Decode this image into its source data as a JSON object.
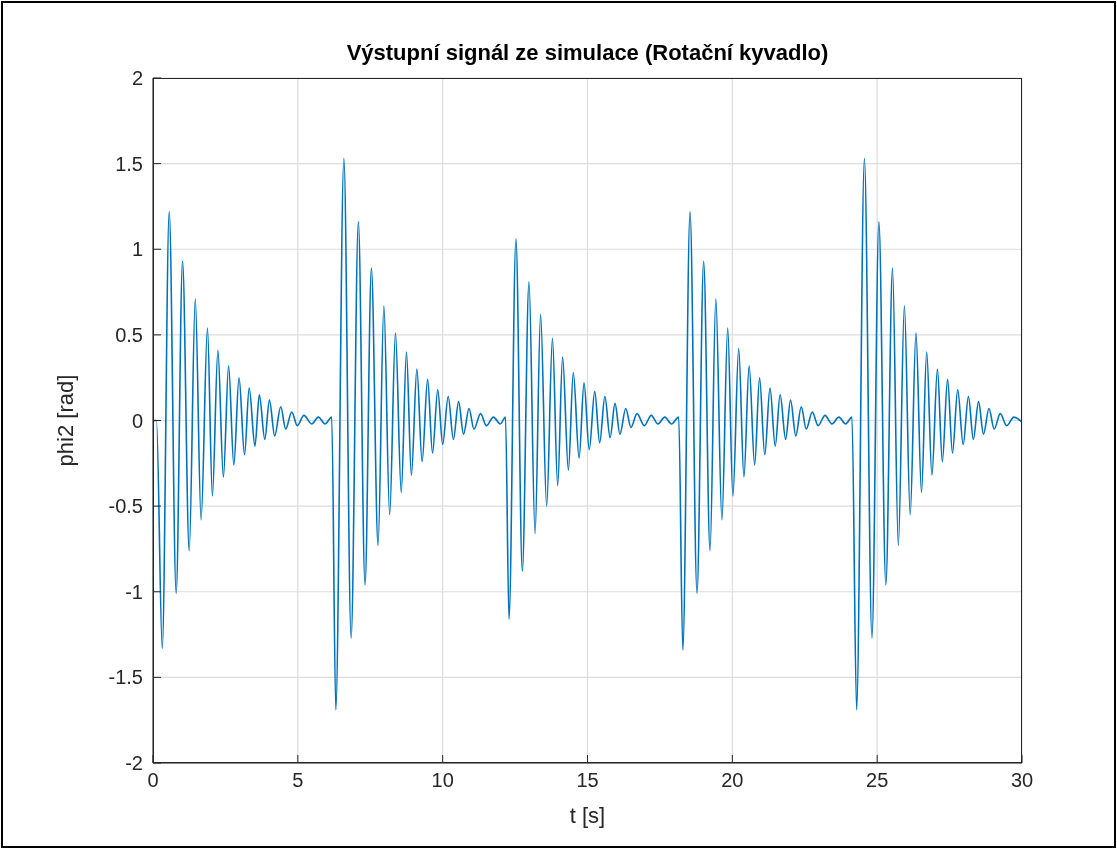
{
  "chart_data": {
    "type": "line",
    "title": "Výstupní signál ze simulace (Rotační kyvadlo)",
    "xlabel": "t [s]",
    "ylabel": "phi2 [rad]",
    "xlim": [
      0,
      30
    ],
    "xticks": [
      0,
      5,
      10,
      15,
      20,
      25,
      30
    ],
    "ylim": [
      -2,
      2
    ],
    "yticks": [
      -2,
      -1.5,
      -1,
      -0.5,
      0,
      0.5,
      1,
      1.5,
      2
    ],
    "grid": true,
    "line_style": "solid",
    "marker": "none",
    "series": [
      {
        "color": "#0072bd",
        "x": [
          0,
          0.12,
          0.32,
          0.56,
          0.8,
          1.02,
          1.25,
          1.46,
          1.66,
          1.88,
          2.05,
          2.24,
          2.43,
          2.61,
          2.79,
          2.97,
          3.16,
          3.32,
          3.52,
          3.67,
          3.86,
          4.02,
          4.2,
          4.41,
          4.58,
          4.79,
          4.98,
          5.21,
          5.48,
          5.71,
          5.94,
          6.17,
          6.31,
          6.59,
          6.84,
          7.09,
          7.32,
          7.54,
          7.77,
          7.97,
          8.17,
          8.37,
          8.57,
          8.75,
          8.92,
          9.11,
          9.29,
          9.48,
          9.65,
          9.83,
          10.0,
          10.19,
          10.37,
          10.55,
          10.72,
          10.91,
          11.08,
          11.31,
          11.51,
          11.75,
          11.99,
          12.17,
          12.29,
          12.53,
          12.75,
          12.98,
          13.19,
          13.38,
          13.59,
          13.79,
          13.97,
          14.14,
          14.34,
          14.51,
          14.71,
          14.88,
          15.06,
          15.25,
          15.42,
          15.6,
          15.78,
          15.95,
          16.12,
          16.32,
          16.5,
          16.71,
          16.96,
          17.2,
          17.43,
          17.67,
          17.9,
          18.15,
          18.29,
          18.54,
          18.78,
          19.01,
          19.23,
          19.43,
          19.64,
          19.84,
          20.02,
          20.22,
          20.4,
          20.58,
          20.77,
          20.94,
          21.12,
          21.3,
          21.48,
          21.65,
          21.84,
          22.01,
          22.19,
          22.38,
          22.55,
          22.76,
          22.96,
          23.2,
          23.44,
          23.68,
          23.91,
          24.13,
          24.29,
          24.56,
          24.82,
          25.06,
          25.3,
          25.53,
          25.73,
          25.94,
          26.14,
          26.34,
          26.53,
          26.71,
          26.89,
          27.08,
          27.25,
          27.43,
          27.6,
          27.78,
          27.97,
          28.15,
          28.32,
          28.5,
          28.67,
          28.86,
          29.04,
          29.25,
          29.47,
          29.72,
          30
        ],
        "values": [
          0,
          0,
          -1.33,
          1.22,
          -1.01,
          0.93,
          -0.76,
          0.71,
          -0.58,
          0.54,
          -0.44,
          0.41,
          -0.33,
          0.32,
          -0.26,
          0.25,
          -0.2,
          0.19,
          -0.15,
          0.15,
          -0.11,
          0.12,
          -0.09,
          0.08,
          -0.05,
          0.05,
          -0.03,
          0.03,
          -0.02,
          0.02,
          -0.02,
          0.02,
          -1.69,
          1.53,
          -1.27,
          1.16,
          -0.96,
          0.89,
          -0.73,
          0.67,
          -0.55,
          0.51,
          -0.42,
          0.4,
          -0.32,
          0.3,
          -0.24,
          0.24,
          -0.19,
          0.18,
          -0.14,
          0.14,
          -0.11,
          0.11,
          -0.08,
          0.07,
          -0.05,
          0.04,
          -0.03,
          0.02,
          -0.02,
          0.02,
          -1.16,
          1.06,
          -0.88,
          0.81,
          -0.66,
          0.62,
          -0.5,
          0.48,
          -0.38,
          0.37,
          -0.29,
          0.28,
          -0.22,
          0.22,
          -0.17,
          0.17,
          -0.13,
          0.14,
          -0.1,
          0.1,
          -0.08,
          0.07,
          -0.04,
          0.04,
          -0.03,
          0.03,
          -0.02,
          0.02,
          -0.02,
          0.02,
          -1.34,
          1.22,
          -1.01,
          0.93,
          -0.76,
          0.71,
          -0.58,
          0.54,
          -0.44,
          0.42,
          -0.33,
          0.32,
          -0.26,
          0.25,
          -0.2,
          0.19,
          -0.15,
          0.15,
          -0.11,
          0.12,
          -0.09,
          0.08,
          -0.05,
          0.05,
          -0.03,
          0.03,
          -0.02,
          0.02,
          -0.02,
          0.02,
          -1.69,
          1.53,
          -1.27,
          1.16,
          -0.96,
          0.89,
          -0.73,
          0.67,
          -0.55,
          0.51,
          -0.42,
          0.4,
          -0.32,
          0.3,
          -0.24,
          0.24,
          -0.19,
          0.18,
          -0.14,
          0.14,
          -0.11,
          0.11,
          -0.08,
          0.07,
          -0.05,
          0.04,
          -0.03,
          0.02,
          -0.01
        ]
      }
    ]
  }
}
